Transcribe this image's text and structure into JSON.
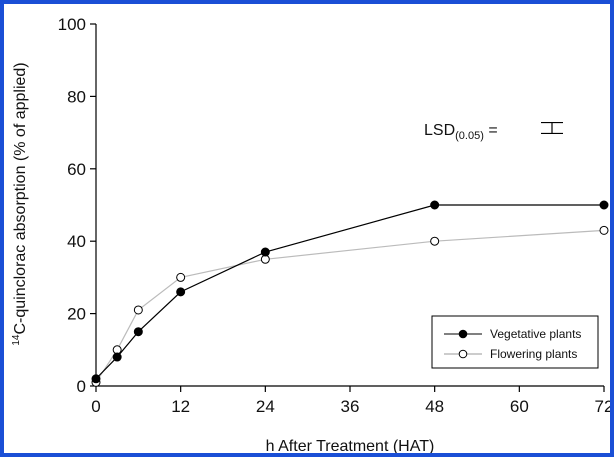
{
  "chart_data": {
    "type": "line",
    "xlabel": "h After Treatment (HAT)",
    "ylabel_super": "14",
    "ylabel": "C-quinclorac absorption (% of applied)",
    "x_ticks": [
      "0",
      "12",
      "24",
      "36",
      "48",
      "60",
      "72"
    ],
    "y_ticks": [
      "0",
      "20",
      "40",
      "60",
      "80",
      "100"
    ],
    "xlim": [
      0,
      72
    ],
    "ylim": [
      0,
      100
    ],
    "grid": false,
    "legend_position": "bottom-right",
    "annotation": {
      "text": "LSD",
      "subscript": "(0.05)",
      "suffix": " =",
      "error_bar_value": 3
    },
    "series": [
      {
        "name": "Vegetative plants",
        "marker": "filled-circle",
        "line_color": "#000000",
        "x": [
          0,
          3,
          6,
          12,
          24,
          48,
          72
        ],
        "y": [
          2,
          8,
          15,
          26,
          37,
          50,
          50
        ]
      },
      {
        "name": "Flowering plants",
        "marker": "open-circle",
        "line_color": "#bbbbbb",
        "x": [
          0,
          3,
          6,
          12,
          24,
          48,
          72
        ],
        "y": [
          1,
          10,
          21,
          30,
          35,
          40,
          43
        ]
      }
    ]
  }
}
